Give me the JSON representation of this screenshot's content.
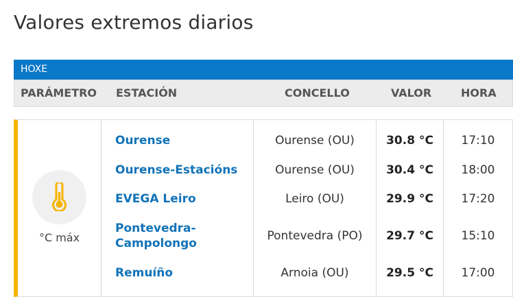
{
  "page": {
    "title": "Valores extremos diarios"
  },
  "tab": {
    "label": "HOXE"
  },
  "headers": {
    "parametro": "PARÁMETRO",
    "estacion": "ESTACIÓN",
    "concello": "CONCELLO",
    "valor": "VALOR",
    "hora": "HORA"
  },
  "parameter": {
    "label": "°C máx",
    "icon": "thermometer-icon",
    "accent_color": "#f6b400"
  },
  "rows": [
    {
      "station": "Ourense",
      "concello": "Ourense (OU)",
      "valor": "30.8 °C",
      "hora": "17:10"
    },
    {
      "station": "Ourense-Estacións",
      "concello": "Ourense (OU)",
      "valor": "30.4 °C",
      "hora": "18:00"
    },
    {
      "station": "EVEGA Leiro",
      "concello": "Leiro (OU)",
      "valor": "29.9 °C",
      "hora": "17:20"
    },
    {
      "station": "Pontevedra-\nCampolongo",
      "concello": "Pontevedra (PO)",
      "valor": "29.7 °C",
      "hora": "15:10"
    },
    {
      "station": "Remuíño",
      "concello": "Arnoia (OU)",
      "valor": "29.5 °C",
      "hora": "17:00"
    }
  ]
}
